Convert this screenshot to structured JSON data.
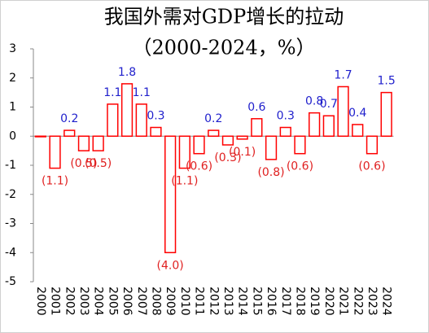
{
  "chart_data": {
    "type": "bar",
    "title": "我国外需对GDP增长的拉动",
    "subtitle": "（2000-2024，%）",
    "categories": [
      "2000",
      "2001",
      "2002",
      "2003",
      "2004",
      "2005",
      "2006",
      "2007",
      "2008",
      "2009",
      "2010",
      "2011",
      "2012",
      "2013",
      "2014",
      "2015",
      "2016",
      "2017",
      "2018",
      "2019",
      "2020",
      "2021",
      "2022",
      "2023",
      "2024"
    ],
    "values": [
      -0.02,
      -1.1,
      0.2,
      -0.5,
      -0.5,
      1.1,
      1.8,
      1.1,
      0.3,
      -4.0,
      -1.1,
      -0.6,
      0.2,
      -0.3,
      -0.1,
      0.6,
      -0.8,
      0.3,
      -0.6,
      0.8,
      0.7,
      1.7,
      0.4,
      -0.6,
      1.5
    ],
    "value_labels": [
      null,
      "(1.1)",
      "0.2",
      "(0.5)",
      "(0.5)",
      "1.1",
      "1.8",
      "1.1",
      "0.3",
      "(4.0)",
      "(1.1)",
      "(0.6)",
      "0.2",
      "(0.3)",
      "(0.1)",
      "0.6",
      "(0.8)",
      "0.3",
      "(0.6)",
      "0.8",
      "0.7",
      "1.7",
      "0.4",
      "(0.6)",
      "1.5"
    ],
    "color": "#ff0000",
    "positive_label_color": "#1f1fcc",
    "negative_label_color": "#e02020",
    "ylim": [
      -5,
      3
    ],
    "yticks": [
      -5,
      -4,
      -3,
      -2,
      -1,
      0,
      1,
      2,
      3
    ]
  }
}
